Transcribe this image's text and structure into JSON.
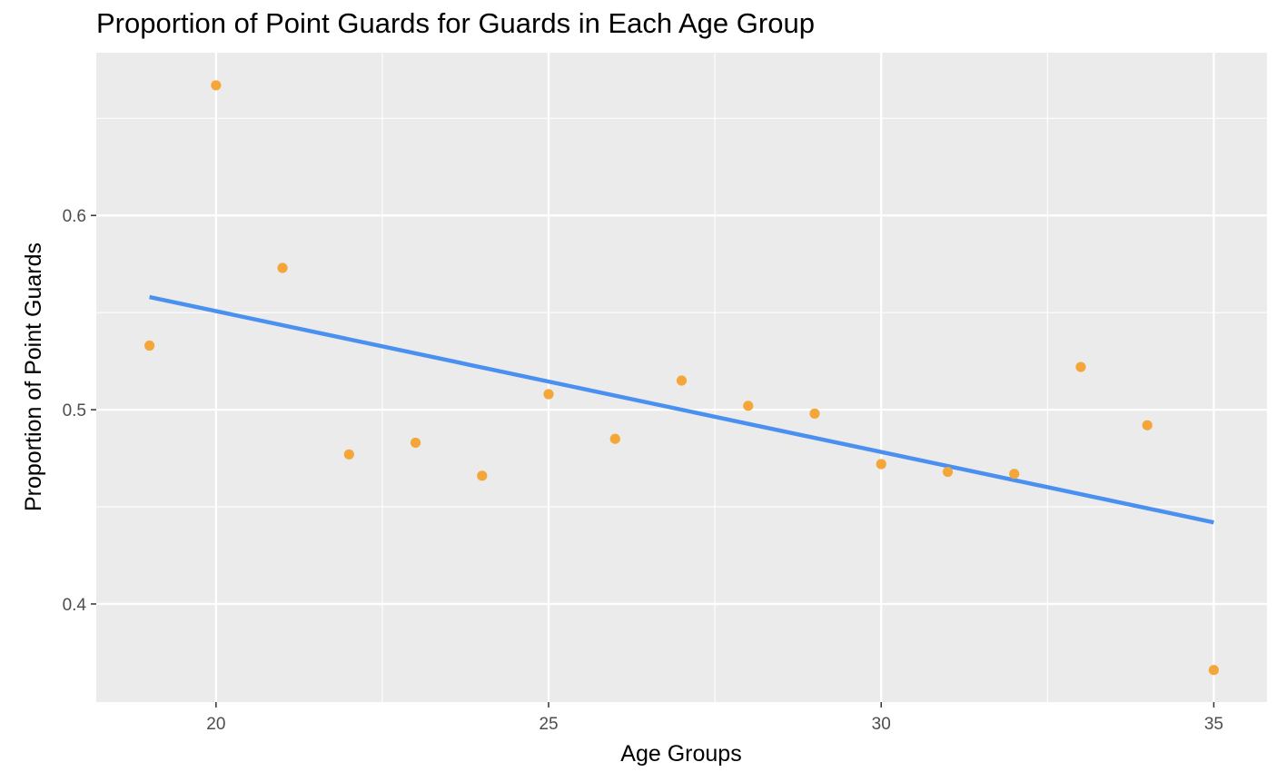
{
  "chart_data": {
    "type": "scatter",
    "title": "Proportion of Point Guards for Guards in Each Age Group",
    "xlabel": "Age Groups",
    "ylabel": "Proportion of Point Guards",
    "xlim": [
      18.2,
      35.8
    ],
    "ylim": [
      0.3495,
      0.6838
    ],
    "x_ticks": [
      20,
      25,
      30,
      35
    ],
    "x_tick_labels": [
      "20",
      "25",
      "30",
      "35"
    ],
    "x_minor_ticks": [
      22.5,
      27.5,
      32.5
    ],
    "y_ticks": [
      0.4,
      0.5,
      0.6
    ],
    "y_tick_labels": [
      "0.4",
      "0.5",
      "0.6"
    ],
    "y_minor_ticks": [
      0.45,
      0.55,
      0.65
    ],
    "grid": true,
    "legend": "none",
    "point_color": "#F4A738",
    "line_color": "#4A90F0",
    "panel_color": "#EBEBEB",
    "points": [
      {
        "x": 19,
        "y": 0.533
      },
      {
        "x": 20,
        "y": 0.667
      },
      {
        "x": 21,
        "y": 0.573
      },
      {
        "x": 22,
        "y": 0.477
      },
      {
        "x": 23,
        "y": 0.483
      },
      {
        "x": 24,
        "y": 0.466
      },
      {
        "x": 25,
        "y": 0.508
      },
      {
        "x": 26,
        "y": 0.485
      },
      {
        "x": 27,
        "y": 0.515
      },
      {
        "x": 28,
        "y": 0.502
      },
      {
        "x": 29,
        "y": 0.498
      },
      {
        "x": 30,
        "y": 0.472
      },
      {
        "x": 31,
        "y": 0.468
      },
      {
        "x": 32,
        "y": 0.467
      },
      {
        "x": 33,
        "y": 0.522
      },
      {
        "x": 34,
        "y": 0.492
      },
      {
        "x": 35,
        "y": 0.366
      }
    ],
    "trend_line": {
      "type": "linear",
      "x": [
        19,
        35
      ],
      "y": [
        0.558,
        0.442
      ]
    }
  }
}
